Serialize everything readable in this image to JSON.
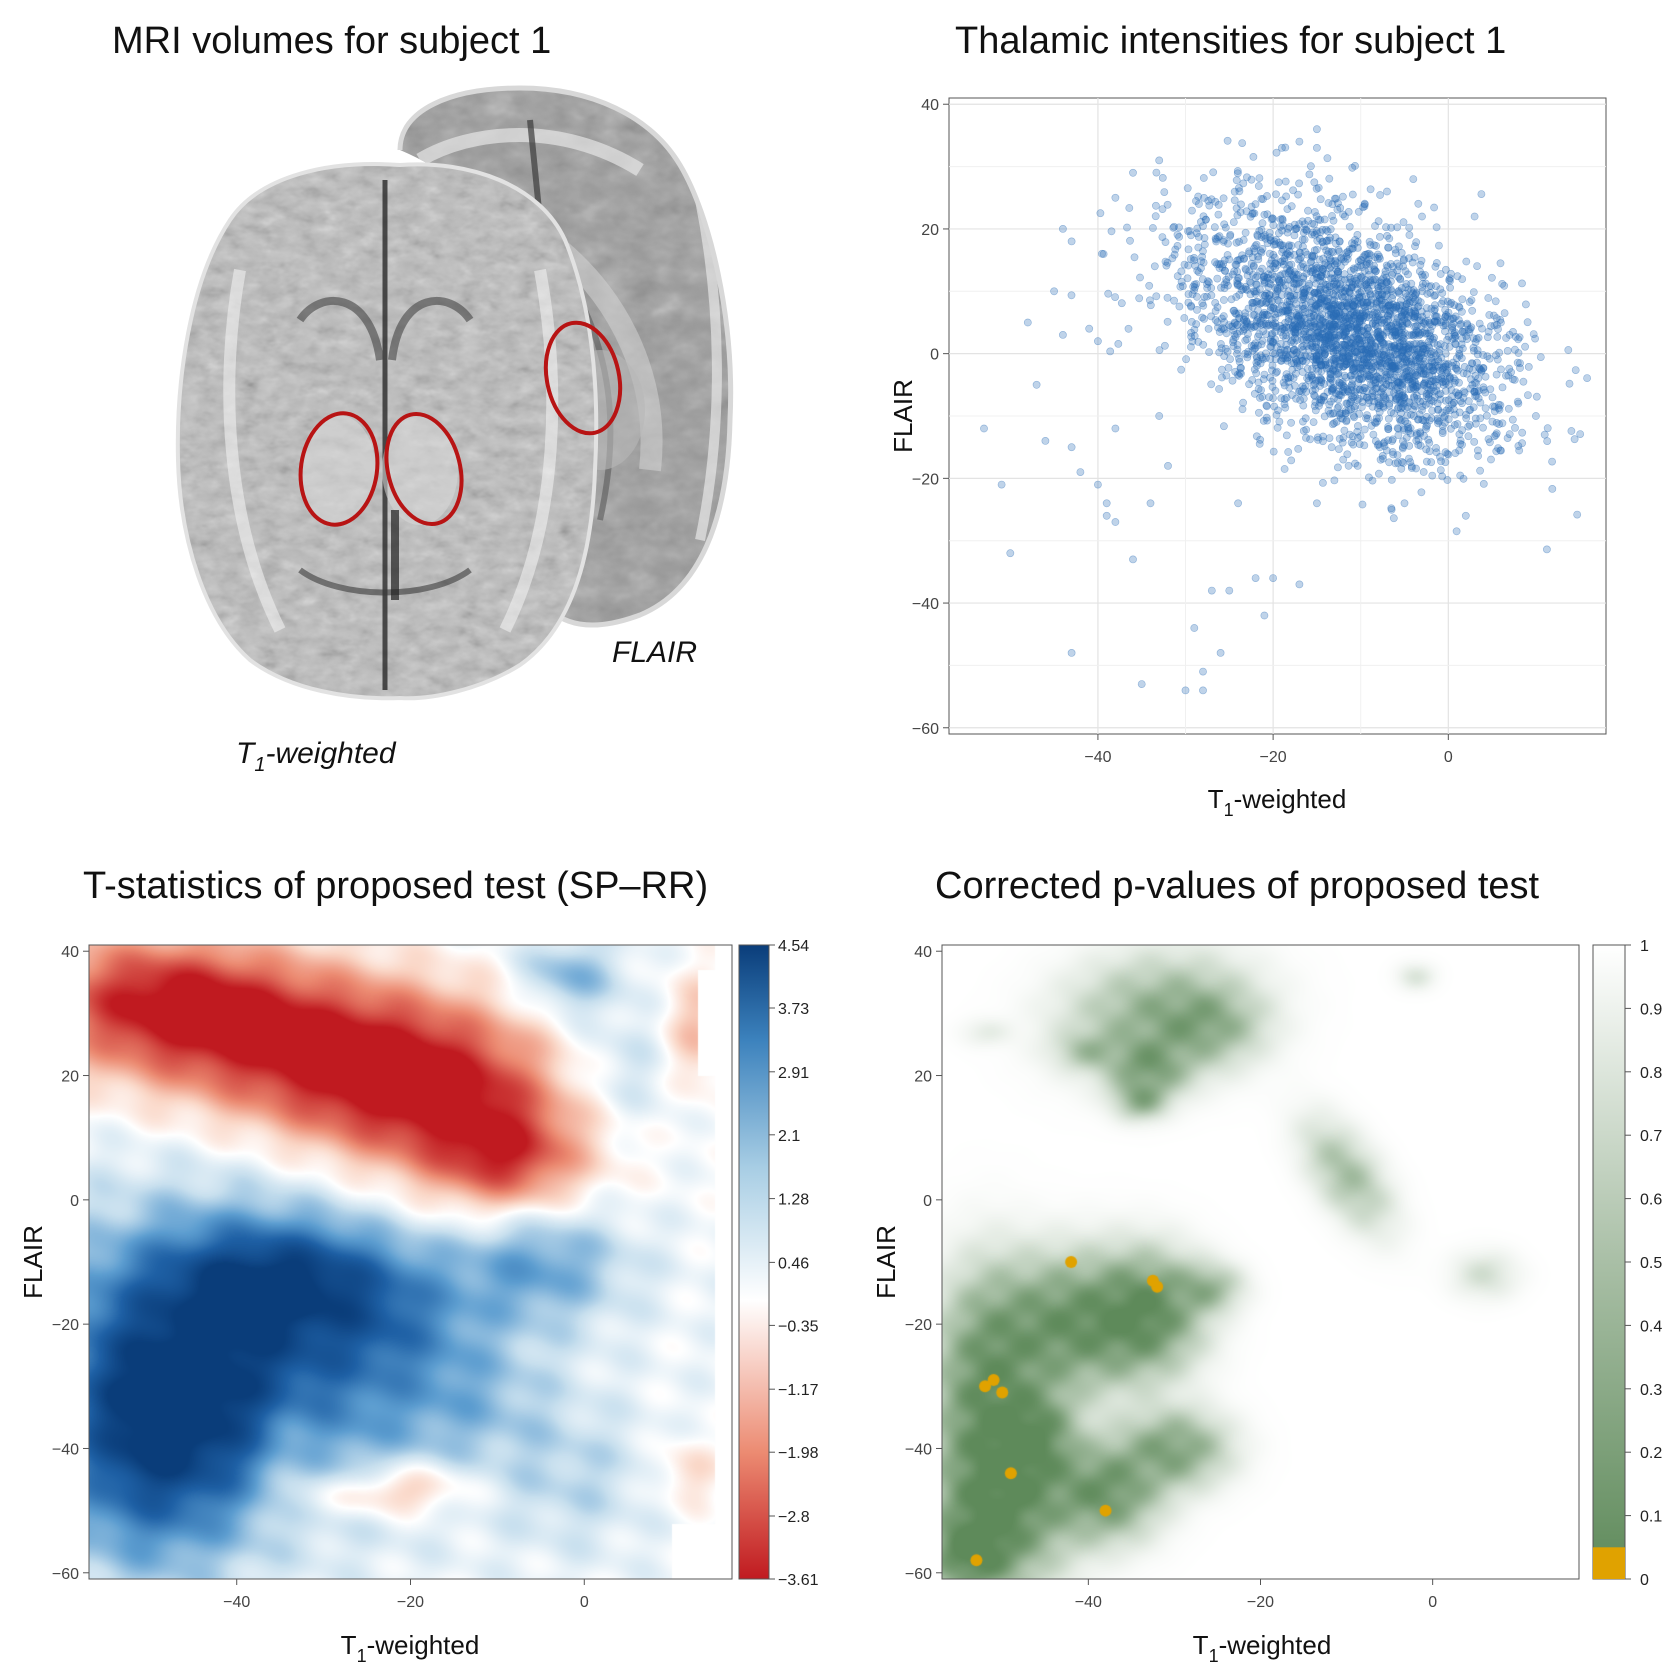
{
  "panels": {
    "mri": {
      "title": "MRI volumes for subject 1",
      "label_t1_main": "T",
      "label_t1_sub": "1",
      "label_t1_rest": "-weighted",
      "label_flair": "FLAIR",
      "roi_color": "#b81414"
    },
    "scatter": {
      "title": "Thalamic intensities for subject 1"
    },
    "tstat": {
      "title": "T-statistics of proposed test (SP–RR)"
    },
    "pval": {
      "title": "Corrected p-values of proposed test"
    }
  },
  "chart_data": [
    {
      "type": "scatter",
      "title": "Thalamic intensities for subject 1",
      "xlabel_main": "T",
      "xlabel_sub": "1",
      "xlabel_rest": "-weighted",
      "ylabel": "FLAIR",
      "xlim": [
        -57,
        18
      ],
      "ylim": [
        -61,
        41
      ],
      "xticks": [
        -40,
        -20,
        0
      ],
      "yticks": [
        40,
        20,
        0,
        -20,
        -40,
        -60
      ],
      "xtick_labels": [
        "−40",
        "−20",
        "0"
      ],
      "ytick_labels": [
        "40",
        "20",
        "0",
        "−20",
        "−40",
        "−60"
      ],
      "grid": true,
      "point_color": "#2a6db5",
      "point_alpha": 0.3,
      "center": [
        -10,
        2
      ],
      "outliers": [
        [
          -53,
          -12
        ],
        [
          -51,
          -21
        ],
        [
          -50,
          -32
        ],
        [
          -47,
          -5
        ],
        [
          -46,
          -14
        ],
        [
          -44,
          20
        ],
        [
          -44,
          3
        ],
        [
          -43,
          -15
        ],
        [
          -43,
          -48
        ],
        [
          -42,
          -19
        ],
        [
          -41,
          4
        ],
        [
          -40,
          2
        ],
        [
          -40,
          -21
        ],
        [
          -39,
          -24
        ],
        [
          -39,
          -26
        ],
        [
          -38,
          -27
        ],
        [
          -38,
          -12
        ],
        [
          -36,
          -33
        ],
        [
          -35,
          -53
        ],
        [
          -34,
          -24
        ],
        [
          -33,
          -10
        ],
        [
          -32,
          -18
        ],
        [
          -30,
          -54
        ],
        [
          -29,
          -44
        ],
        [
          -28,
          -51
        ],
        [
          -28,
          -54
        ],
        [
          -27,
          -38
        ],
        [
          -26,
          -48
        ],
        [
          -25,
          -38
        ],
        [
          -24,
          -24
        ],
        [
          -22,
          -36
        ],
        [
          -21,
          -42
        ],
        [
          -20,
          -36
        ],
        [
          -17,
          -37
        ],
        [
          -15,
          -24
        ],
        [
          -12,
          -17
        ],
        [
          -5,
          -24
        ],
        [
          2,
          -26
        ],
        [
          10,
          -10
        ],
        [
          11,
          -13
        ],
        [
          8,
          -8
        ],
        [
          3,
          22
        ],
        [
          -3,
          22
        ],
        [
          -4,
          28
        ],
        [
          -7,
          26
        ],
        [
          -15,
          36
        ],
        [
          -17,
          34
        ],
        [
          -19,
          33
        ],
        [
          -15,
          33
        ],
        [
          -33,
          31
        ],
        [
          -36,
          29
        ],
        [
          -38,
          25
        ],
        [
          -43,
          18
        ],
        [
          -45,
          10
        ],
        [
          -48,
          5
        ],
        [
          6,
          5
        ],
        [
          7,
          3
        ]
      ]
    },
    {
      "type": "heatmap",
      "title": "T-statistics of proposed test (SP–RR)",
      "xlabel_main": "T",
      "xlabel_sub": "1",
      "xlabel_rest": "-weighted",
      "ylabel": "FLAIR",
      "xlim": [
        -57,
        17
      ],
      "ylim": [
        -61,
        41
      ],
      "xticks": [
        -40,
        -20,
        0
      ],
      "yticks": [
        40,
        20,
        0,
        -20,
        -40,
        -60
      ],
      "xtick_labels": [
        "−40",
        "−20",
        "0"
      ],
      "ytick_labels": [
        "40",
        "20",
        "0",
        "−20",
        "−40",
        "−60"
      ],
      "colorbar_range": [
        -3.61,
        4.54
      ],
      "colorbar_ticks": [
        4.54,
        3.73,
        2.91,
        2.1,
        1.28,
        0.46,
        -0.35,
        -1.17,
        -1.98,
        -2.8,
        -3.61
      ],
      "colorbar_tick_labels": [
        "4.54",
        "3.73",
        "2.91",
        "2.1",
        "1.28",
        "0.46",
        "−0.35",
        "−1.17",
        "−1.98",
        "−2.8",
        "−3.61"
      ],
      "colors": {
        "low": "#c01a20",
        "mid": "#ffffff",
        "high": "#0a3d7a"
      },
      "features": [
        {
          "x": -35,
          "y": 25,
          "sx": 20,
          "sy": 9,
          "amp": -3.2,
          "rot": -0.35
        },
        {
          "x": -18,
          "y": 18,
          "sx": 12,
          "sy": 10,
          "amp": -2.6,
          "rot": -0.6
        },
        {
          "x": -9,
          "y": 6,
          "sx": 6,
          "sy": 6,
          "amp": -2.2,
          "rot": 0
        },
        {
          "x": -48,
          "y": 32,
          "sx": 10,
          "sy": 7,
          "amp": -2.0,
          "rot": 0
        },
        {
          "x": 13,
          "y": 27,
          "sx": 3,
          "sy": 7,
          "amp": -1.5,
          "rot": 0
        },
        {
          "x": -34,
          "y": -40,
          "sx": 3,
          "sy": 7,
          "amp": -0.9,
          "rot": 0
        },
        {
          "x": -20,
          "y": -46,
          "sx": 5,
          "sy": 3,
          "amp": -1.4,
          "rot": 0
        },
        {
          "x": -27,
          "y": -48,
          "sx": 6,
          "sy": 2.5,
          "amp": -0.8,
          "rot": 0
        },
        {
          "x": 12,
          "y": -44,
          "sx": 2.5,
          "sy": 4,
          "amp": -1.0,
          "rot": 0
        },
        {
          "x": -40,
          "y": -25,
          "sx": 15,
          "sy": 16,
          "amp": 3.6,
          "rot": 0.3
        },
        {
          "x": -50,
          "y": -40,
          "sx": 8,
          "sy": 14,
          "amp": 2.8,
          "rot": 0
        },
        {
          "x": -34,
          "y": -12,
          "sx": 10,
          "sy": 6,
          "amp": 2.2,
          "rot": 0
        },
        {
          "x": -5,
          "y": -10,
          "sx": 7,
          "sy": 7,
          "amp": 1.8,
          "rot": 0
        },
        {
          "x": -2,
          "y": 36,
          "sx": 4,
          "sy": 4,
          "amp": 1.6,
          "rot": 0
        },
        {
          "x": 4,
          "y": 20,
          "sx": 6,
          "sy": 8,
          "amp": 1.0,
          "rot": 0
        },
        {
          "x": -13,
          "y": -32,
          "sx": 7,
          "sy": 8,
          "amp": 0.9,
          "rot": 0
        },
        {
          "x": -1,
          "y": -45,
          "sx": 6,
          "sy": 8,
          "amp": 0.8,
          "rot": 0
        },
        {
          "x": -22,
          "y": -20,
          "sx": 6,
          "sy": 6,
          "amp": 0.9,
          "rot": 0
        }
      ]
    },
    {
      "type": "heatmap",
      "title": "Corrected p-values of proposed test",
      "xlabel_main": "T",
      "xlabel_sub": "1",
      "xlabel_rest": "-weighted",
      "ylabel": "FLAIR",
      "xlim": [
        -57,
        17
      ],
      "ylim": [
        -61,
        41
      ],
      "xticks": [
        -40,
        -20,
        0
      ],
      "yticks": [
        40,
        20,
        0,
        -20,
        -40,
        -60
      ],
      "xtick_labels": [
        "−40",
        "−20",
        "0"
      ],
      "ytick_labels": [
        "40",
        "20",
        "0",
        "−20",
        "−40",
        "−60"
      ],
      "colorbar_range": [
        0,
        1
      ],
      "colorbar_ticks": [
        1,
        0.9,
        0.8,
        0.7,
        0.6,
        0.5,
        0.4,
        0.3,
        0.2,
        0.1,
        0
      ],
      "colorbar_tick_labels": [
        "1",
        "0.9",
        "0.8",
        "0.7",
        "0.6",
        "0.5",
        "0.4",
        "0.3",
        "0.2",
        "0.1",
        "0"
      ],
      "significance_threshold": 0.05,
      "colors": {
        "significant": "#e0a200",
        "low": "#5e8a5a",
        "high": "#ffffff"
      },
      "features": [
        {
          "x": -42,
          "y": -20,
          "sx": 6,
          "sy": 7,
          "amp": 0.9,
          "rot": 0
        },
        {
          "x": -52,
          "y": -32,
          "sx": 4,
          "sy": 12,
          "amp": 0.9,
          "rot": 0
        },
        {
          "x": -50,
          "y": -50,
          "sx": 5,
          "sy": 8,
          "amp": 0.9,
          "rot": 0
        },
        {
          "x": -38,
          "y": -47,
          "sx": 4,
          "sy": 5,
          "amp": 0.85,
          "rot": 0
        },
        {
          "x": -33,
          "y": -18,
          "sx": 4,
          "sy": 6,
          "amp": 0.85,
          "rot": 0
        },
        {
          "x": -30,
          "y": -40,
          "sx": 4,
          "sy": 4,
          "amp": 0.7,
          "rot": 0
        },
        {
          "x": -46,
          "y": -38,
          "sx": 3,
          "sy": 5,
          "amp": 0.75,
          "rot": 0
        },
        {
          "x": -54,
          "y": -57,
          "sx": 3,
          "sy": 4,
          "amp": 0.8,
          "rot": 0
        },
        {
          "x": -26,
          "y": -14,
          "sx": 2.5,
          "sy": 2.5,
          "amp": 0.45,
          "rot": 0
        },
        {
          "x": -32,
          "y": 30,
          "sx": 7,
          "sy": 6,
          "amp": 0.55,
          "rot": 0.4
        },
        {
          "x": -33,
          "y": 21,
          "sx": 3,
          "sy": 3,
          "amp": 0.6,
          "rot": 0
        },
        {
          "x": -34,
          "y": 16,
          "sx": 2,
          "sy": 2,
          "amp": 0.5,
          "rot": 0
        },
        {
          "x": -26,
          "y": 28,
          "sx": 4,
          "sy": 4,
          "amp": 0.4,
          "rot": 0
        },
        {
          "x": -10,
          "y": 4,
          "sx": 2.5,
          "sy": 6,
          "amp": 0.45,
          "rot": 0.4
        },
        {
          "x": -40,
          "y": 24,
          "sx": 2.5,
          "sy": 2,
          "amp": 0.3,
          "rot": 0
        },
        {
          "x": 6,
          "y": -12,
          "sx": 2.5,
          "sy": 2.5,
          "amp": 0.2,
          "rot": 0
        },
        {
          "x": -2,
          "y": 36,
          "sx": 1.5,
          "sy": 1.5,
          "amp": 0.15,
          "rot": 0
        },
        {
          "x": -52,
          "y": 27,
          "sx": 2,
          "sy": 1.5,
          "amp": 0.1,
          "rot": 0
        }
      ],
      "significant_points": [
        [
          -42,
          -10
        ],
        [
          -32,
          -14
        ],
        [
          -32.5,
          -13
        ],
        [
          -51,
          -29
        ],
        [
          -50,
          -31
        ],
        [
          -52,
          -30
        ],
        [
          -49,
          -44
        ],
        [
          -38,
          -50
        ],
        [
          -53,
          -58
        ]
      ]
    }
  ]
}
